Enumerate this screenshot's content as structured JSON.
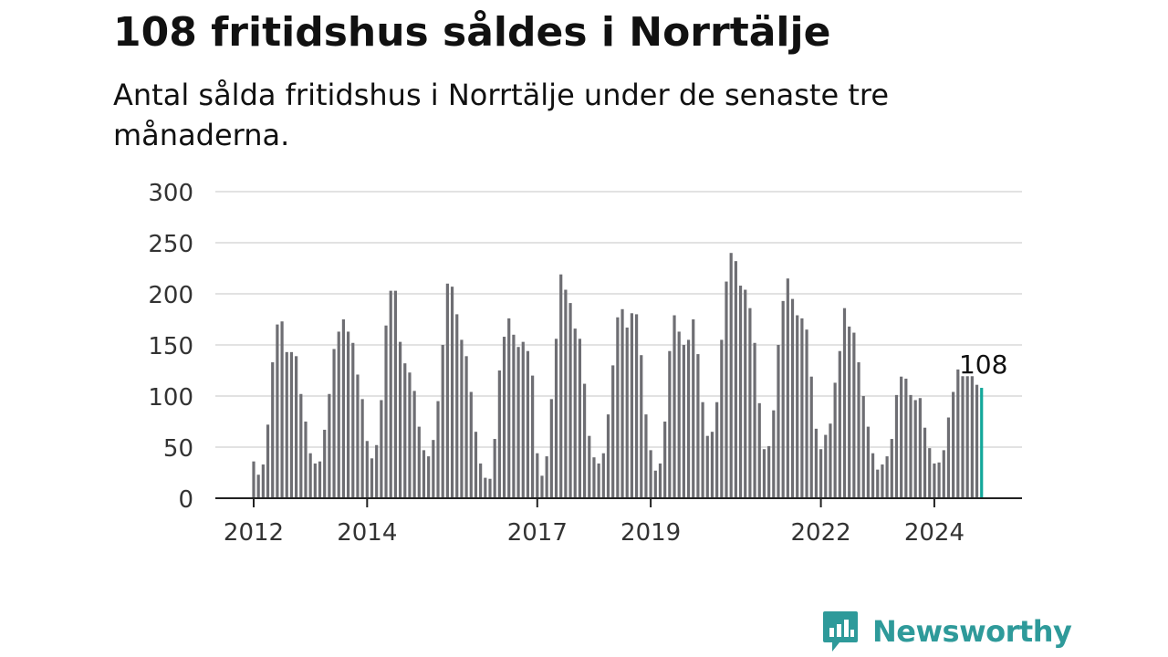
{
  "header": {
    "title": "108 fritidshus såldes i Norrtälje",
    "subtitle": "Antal sålda fritidshus i Norrtälje under de senaste tre månaderna."
  },
  "chart_data": {
    "type": "bar",
    "title": "108 fritidshus såldes i Norrtälje",
    "subtitle": "Antal sålda fritidshus i Norrtälje under de senaste tre månaderna.",
    "start": "2012-01",
    "x_tick_labels": [
      "2012",
      "2014",
      "2017",
      "2019",
      "2022",
      "2024"
    ],
    "y_ticks": [
      0,
      50,
      100,
      150,
      200,
      250,
      300
    ],
    "ylim": [
      0,
      300
    ],
    "grid": true,
    "annotation": "108",
    "bar_color": "#6e6e73",
    "highlight_color": "#14a89b",
    "series": [
      {
        "values": [
          36,
          23,
          33,
          72,
          133,
          170,
          173,
          143,
          143,
          139,
          102,
          75,
          44,
          34,
          36,
          67,
          102,
          146,
          163,
          175,
          163,
          152,
          121,
          97,
          56,
          39,
          52,
          96,
          169,
          203,
          203,
          153,
          132,
          123,
          105,
          70,
          47,
          41,
          57,
          95,
          150,
          210,
          207,
          180,
          155,
          139,
          104,
          65,
          34,
          20,
          19,
          58,
          125,
          158,
          176,
          160,
          148,
          153,
          144,
          120,
          44,
          22,
          41,
          97,
          156,
          219,
          204,
          191,
          166,
          156,
          112,
          61,
          40,
          34,
          44,
          82,
          130,
          177,
          185,
          167,
          181,
          180,
          140,
          82,
          47,
          27,
          34,
          75,
          144,
          179,
          163,
          150,
          155,
          175,
          141,
          94,
          61,
          65,
          94,
          155,
          212,
          240,
          232,
          208,
          204,
          186,
          152,
          93,
          48,
          51,
          86,
          150,
          193,
          215,
          195,
          179,
          176,
          165,
          119,
          68,
          48,
          62,
          73,
          113,
          144,
          186,
          168,
          162,
          133,
          100,
          70,
          44,
          28,
          33,
          41,
          58,
          101,
          119,
          117,
          101,
          96,
          98,
          69,
          49,
          34,
          35,
          47,
          79,
          104,
          126,
          121,
          120,
          123,
          111,
          108
        ]
      }
    ]
  },
  "branding": {
    "logo_text": "Newsworthy",
    "logo_icon": "chart-bubble-icon",
    "logo_color": "#2e9a9a"
  }
}
